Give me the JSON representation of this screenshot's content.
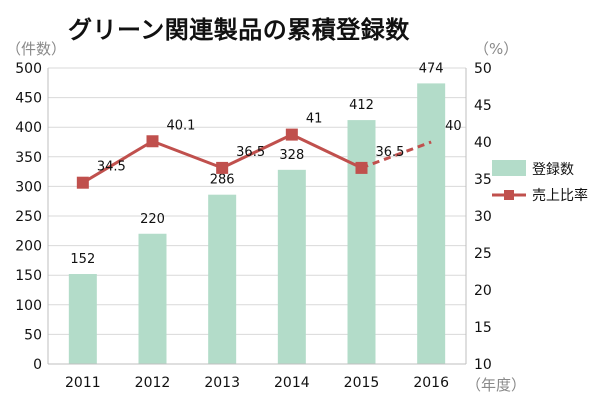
{
  "title": "グリーン関連製品の累積登録数",
  "unit_left": "（件数）",
  "unit_right": "（%）",
  "unit_x": "（年度）",
  "chart_data": {
    "type": "bar+line",
    "categories": [
      "2011",
      "2012",
      "2013",
      "2014",
      "2015",
      "2016"
    ],
    "series": [
      {
        "name": "登録数",
        "type": "bar",
        "axis": "left",
        "color": "#b3dcc9",
        "values": [
          152,
          220,
          286,
          328,
          412,
          474
        ]
      },
      {
        "name": "売上比率",
        "type": "line",
        "axis": "right",
        "color": "#c0504d",
        "values": [
          34.5,
          40.1,
          36.5,
          41,
          36.5,
          40
        ],
        "data_labels": [
          "34.5",
          "40.1",
          "36.5",
          "41",
          "36.5",
          "40"
        ],
        "dashed_from_index": 4,
        "last_point_marker": false,
        "last_label_color": "#a6a6a6"
      }
    ],
    "ylim_left": [
      0,
      500
    ],
    "yticks_left": [
      "0",
      "50",
      "100",
      "150",
      "200",
      "250",
      "300",
      "350",
      "400",
      "450",
      "500"
    ],
    "ylim_right": [
      10,
      50
    ],
    "yticks_right": [
      "10",
      "15",
      "20",
      "25",
      "30",
      "35",
      "40",
      "45",
      "50"
    ],
    "grid": "horizontal",
    "legend_position": "right"
  }
}
